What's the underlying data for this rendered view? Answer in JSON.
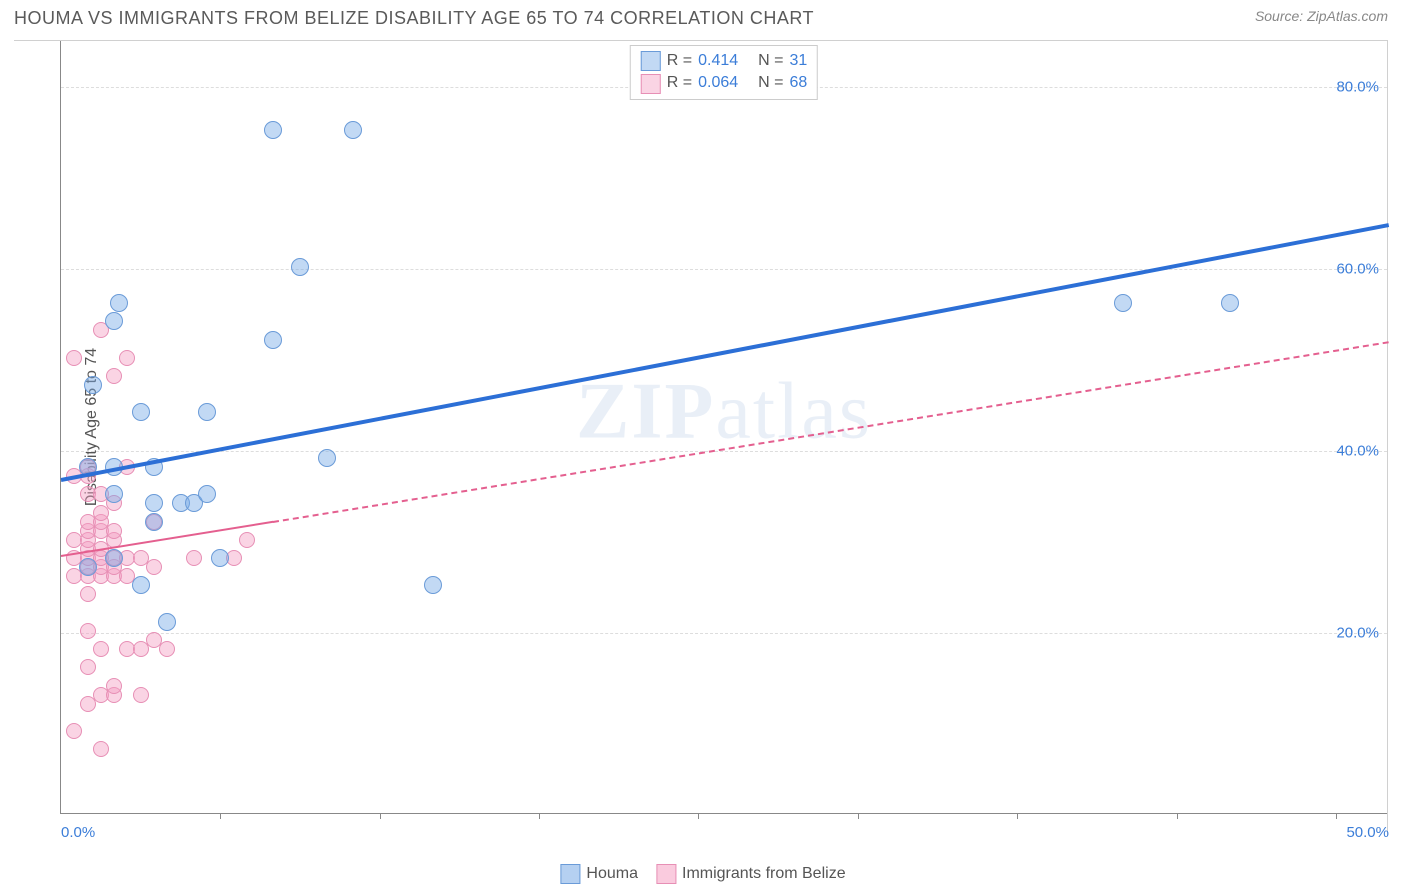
{
  "header": {
    "title": "HOUMA VS IMMIGRANTS FROM BELIZE DISABILITY AGE 65 TO 74 CORRELATION CHART",
    "source": "Source: ZipAtlas.com"
  },
  "watermark": {
    "part1": "ZIP",
    "part2": "atlas"
  },
  "chart": {
    "type": "scatter",
    "ylabel": "Disability Age 65 to 74",
    "background_color": "#ffffff",
    "grid_color": "#dddddd",
    "axis_color": "#888888",
    "xlim": [
      0,
      50
    ],
    "ylim": [
      0,
      85
    ],
    "x_ticks_minor": [
      6,
      12,
      18,
      24,
      30,
      36,
      42,
      48
    ],
    "x_ticks_labeled": [
      {
        "value": 0,
        "label": "0.0%",
        "color": "#3b7dd8"
      },
      {
        "value": 50,
        "label": "50.0%",
        "color": "#3b7dd8"
      }
    ],
    "y_gridlines": [
      {
        "value": 20,
        "label": "20.0%",
        "color": "#3b7dd8"
      },
      {
        "value": 40,
        "label": "40.0%",
        "color": "#3b7dd8"
      },
      {
        "value": 60,
        "label": "60.0%",
        "color": "#3b7dd8"
      },
      {
        "value": 80,
        "label": "80.0%",
        "color": "#3b7dd8"
      }
    ],
    "series": [
      {
        "name": "Houma",
        "color_fill": "rgba(120,170,230,0.45)",
        "color_stroke": "#6a9bd8",
        "marker_radius": 9,
        "R": "0.414",
        "N": "31",
        "stat_color": "#3b7dd8",
        "trend": {
          "color": "#2c6fd6",
          "width": 4,
          "dash": "solid",
          "solid_extent": 50,
          "x1": 0,
          "y1": 37,
          "x2": 50,
          "y2": 65
        },
        "points": [
          [
            1,
            27
          ],
          [
            1,
            38
          ],
          [
            1.2,
            47
          ],
          [
            2,
            28
          ],
          [
            2,
            35
          ],
          [
            2,
            38
          ],
          [
            2,
            54
          ],
          [
            2.2,
            56
          ],
          [
            3,
            25
          ],
          [
            3,
            44
          ],
          [
            3.5,
            32
          ],
          [
            3.5,
            34
          ],
          [
            3.5,
            38
          ],
          [
            4,
            21
          ],
          [
            4.5,
            34
          ],
          [
            5,
            34
          ],
          [
            5.5,
            35
          ],
          [
            5.5,
            44
          ],
          [
            6,
            28
          ],
          [
            8,
            52
          ],
          [
            8,
            75
          ],
          [
            9,
            60
          ],
          [
            10,
            39
          ],
          [
            11,
            75
          ],
          [
            14,
            25
          ],
          [
            40,
            56
          ],
          [
            44,
            56
          ]
        ]
      },
      {
        "name": "Immigrants from Belize",
        "color_fill": "rgba(245,160,195,0.45)",
        "color_stroke": "#e78fb5",
        "marker_radius": 8,
        "R": "0.064",
        "N": "68",
        "stat_color": "#3b7dd8",
        "trend": {
          "color": "#e45f8f",
          "width": 2,
          "dash": "dashed",
          "solid_extent": 8,
          "x1": 0,
          "y1": 28.5,
          "x2": 50,
          "y2": 52
        },
        "points": [
          [
            0.5,
            9
          ],
          [
            0.5,
            26
          ],
          [
            0.5,
            28
          ],
          [
            0.5,
            30
          ],
          [
            0.5,
            37
          ],
          [
            0.5,
            50
          ],
          [
            1,
            12
          ],
          [
            1,
            16
          ],
          [
            1,
            20
          ],
          [
            1,
            24
          ],
          [
            1,
            26
          ],
          [
            1,
            27
          ],
          [
            1,
            28
          ],
          [
            1,
            29
          ],
          [
            1,
            30
          ],
          [
            1,
            31
          ],
          [
            1,
            32
          ],
          [
            1,
            35
          ],
          [
            1,
            37
          ],
          [
            1,
            38
          ],
          [
            1.5,
            7
          ],
          [
            1.5,
            13
          ],
          [
            1.5,
            18
          ],
          [
            1.5,
            26
          ],
          [
            1.5,
            27
          ],
          [
            1.5,
            28
          ],
          [
            1.5,
            29
          ],
          [
            1.5,
            31
          ],
          [
            1.5,
            32
          ],
          [
            1.5,
            33
          ],
          [
            1.5,
            35
          ],
          [
            1.5,
            53
          ],
          [
            2,
            13
          ],
          [
            2,
            14
          ],
          [
            2,
            26
          ],
          [
            2,
            27
          ],
          [
            2,
            28
          ],
          [
            2,
            30
          ],
          [
            2,
            31
          ],
          [
            2,
            34
          ],
          [
            2,
            48
          ],
          [
            2.5,
            18
          ],
          [
            2.5,
            26
          ],
          [
            2.5,
            28
          ],
          [
            2.5,
            38
          ],
          [
            2.5,
            50
          ],
          [
            3,
            13
          ],
          [
            3,
            18
          ],
          [
            3,
            28
          ],
          [
            3.5,
            19
          ],
          [
            3.5,
            27
          ],
          [
            3.5,
            32
          ],
          [
            4,
            18
          ],
          [
            5,
            28
          ],
          [
            6.5,
            28
          ],
          [
            7,
            30
          ]
        ]
      }
    ]
  },
  "legend_bottom": [
    {
      "label": "Houma",
      "fill": "rgba(120,170,230,0.55)",
      "stroke": "#6a9bd8"
    },
    {
      "label": "Immigrants from Belize",
      "fill": "rgba(245,160,195,0.55)",
      "stroke": "#e78fb5"
    }
  ]
}
